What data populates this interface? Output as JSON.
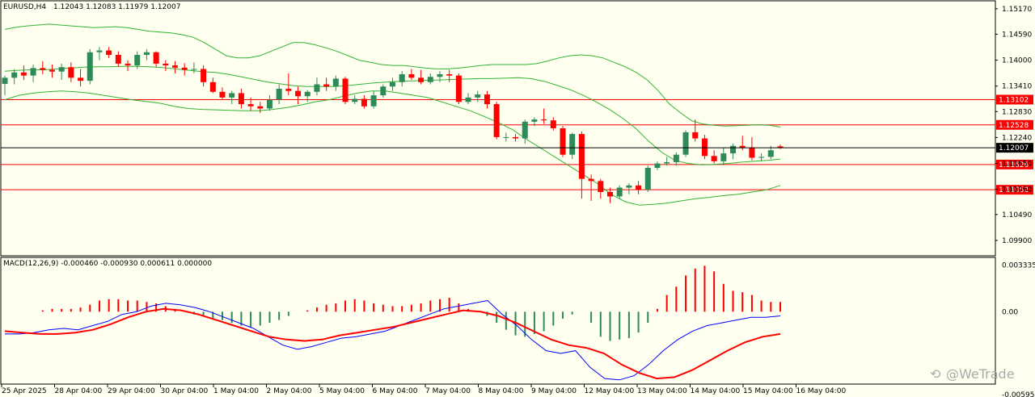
{
  "header": {
    "symbol": "EURUSD,H4",
    "ohlc": "1.12043 1.12083 1.11979 1.12007"
  },
  "macd_header": "MACD(12,26,9) -0.000460 -0.000930 0.000611 0.000000",
  "watermark": "@WeTrade",
  "colors": {
    "background": "#fffff0",
    "bull": "#2e8b57",
    "bear": "#ff0000",
    "bands": "#32b432",
    "hline": "#ff0000",
    "macd_line": "#0000ff",
    "signal_line": "#ff0000",
    "label_red": "#ff0000"
  },
  "chart_data": [
    {
      "type": "candlestick",
      "title": "EURUSD,H4",
      "ylim": [
        1.0955,
        1.1535
      ],
      "y_ticks": [
        "1.15170",
        "1.14590",
        "1.14000",
        "1.13410",
        "1.12830",
        "1.12240",
        "1.11650",
        "1.11060",
        "1.10490",
        "1.09900"
      ],
      "x_ticks": [
        "25 Apr 2025",
        "28 Apr 04:00",
        "29 Apr 04:00",
        "30 Apr 04:00",
        "1 May 04:00",
        "2 May 04:00",
        "5 May 04:00",
        "6 May 04:00",
        "7 May 04:00",
        "8 May 04:00",
        "9 May 04:00",
        "12 May 04:00",
        "13 May 04:00",
        "14 May 04:00",
        "15 May 04:00",
        "16 May 04:00"
      ],
      "current_price": "1.12007",
      "horizontal_lines": [
        "1.13102",
        "1.12528",
        "1.11626",
        "1.11052"
      ],
      "candles": [
        [
          1.1346,
          1.1365,
          1.132,
          1.136
        ],
        [
          1.136,
          1.138,
          1.1345,
          1.1372
        ],
        [
          1.1372,
          1.1388,
          1.1355,
          1.1365
        ],
        [
          1.1365,
          1.139,
          1.135,
          1.1382
        ],
        [
          1.1382,
          1.1398,
          1.1368,
          1.1378
        ],
        [
          1.1378,
          1.139,
          1.136,
          1.1374
        ],
        [
          1.1374,
          1.1392,
          1.1355,
          1.1384
        ],
        [
          1.1384,
          1.1395,
          1.135,
          1.136
        ],
        [
          1.136,
          1.138,
          1.134,
          1.1353
        ],
        [
          1.1353,
          1.1425,
          1.1345,
          1.1418
        ],
        [
          1.1418,
          1.143,
          1.14,
          1.1422
        ],
        [
          1.1422,
          1.143,
          1.1405,
          1.1412
        ],
        [
          1.1412,
          1.142,
          1.1385,
          1.1392
        ],
        [
          1.1392,
          1.14,
          1.1375,
          1.1388
        ],
        [
          1.1388,
          1.142,
          1.138,
          1.1412
        ],
        [
          1.1412,
          1.1425,
          1.14,
          1.1418
        ],
        [
          1.1418,
          1.142,
          1.1385,
          1.1392
        ],
        [
          1.1392,
          1.14,
          1.1375,
          1.1388
        ],
        [
          1.1388,
          1.1398,
          1.137,
          1.1383
        ],
        [
          1.1383,
          1.1393,
          1.1365,
          1.1378
        ],
        [
          1.1378,
          1.1395,
          1.137,
          1.138
        ],
        [
          1.138,
          1.1388,
          1.134,
          1.135
        ],
        [
          1.135,
          1.136,
          1.1325,
          1.1328
        ],
        [
          1.1328,
          1.1338,
          1.131,
          1.1315
        ],
        [
          1.1315,
          1.133,
          1.13,
          1.1325
        ],
        [
          1.1325,
          1.1335,
          1.129,
          1.13
        ],
        [
          1.13,
          1.1315,
          1.1285,
          1.1295
        ],
        [
          1.1295,
          1.1305,
          1.128,
          1.129
        ],
        [
          1.129,
          1.132,
          1.1285,
          1.131
        ],
        [
          1.131,
          1.1345,
          1.13,
          1.1335
        ],
        [
          1.1335,
          1.137,
          1.132,
          1.133
        ],
        [
          1.133,
          1.134,
          1.13,
          1.1318
        ],
        [
          1.1318,
          1.1332,
          1.1305,
          1.1328
        ],
        [
          1.1328,
          1.136,
          1.132,
          1.1345
        ],
        [
          1.1345,
          1.136,
          1.133,
          1.134
        ],
        [
          1.134,
          1.1365,
          1.133,
          1.1358
        ],
        [
          1.1358,
          1.1362,
          1.13,
          1.1305
        ],
        [
          1.1305,
          1.132,
          1.13,
          1.1312
        ],
        [
          1.1312,
          1.132,
          1.129,
          1.1295
        ],
        [
          1.1295,
          1.133,
          1.129,
          1.132
        ],
        [
          1.132,
          1.1345,
          1.1315,
          1.134
        ],
        [
          1.134,
          1.136,
          1.133,
          1.135
        ],
        [
          1.135,
          1.1375,
          1.134,
          1.1368
        ],
        [
          1.1368,
          1.138,
          1.1355,
          1.136
        ],
        [
          1.136,
          1.1378,
          1.1345,
          1.135
        ],
        [
          1.135,
          1.137,
          1.1345,
          1.1362
        ],
        [
          1.1362,
          1.1375,
          1.135,
          1.1368
        ],
        [
          1.1368,
          1.1378,
          1.135,
          1.1365
        ],
        [
          1.1365,
          1.137,
          1.13,
          1.1305
        ],
        [
          1.1305,
          1.1325,
          1.13,
          1.1315
        ],
        [
          1.1315,
          1.133,
          1.1305,
          1.1322
        ],
        [
          1.1322,
          1.133,
          1.129,
          1.13
        ],
        [
          1.13,
          1.1305,
          1.122,
          1.1225
        ],
        [
          1.1225,
          1.1235,
          1.1215,
          1.1225
        ],
        [
          1.1225,
          1.1232,
          1.1215,
          1.1222
        ],
        [
          1.1222,
          1.1265,
          1.121,
          1.126
        ],
        [
          1.126,
          1.127,
          1.125,
          1.1265
        ],
        [
          1.1265,
          1.129,
          1.1255,
          1.1263
        ],
        [
          1.1263,
          1.127,
          1.124,
          1.1245
        ],
        [
          1.1245,
          1.125,
          1.118,
          1.1185
        ],
        [
          1.1185,
          1.1235,
          1.1175,
          1.1232
        ],
        [
          1.1232,
          1.1238,
          1.1085,
          1.113
        ],
        [
          1.113,
          1.114,
          1.108,
          1.1125
        ],
        [
          1.1125,
          1.113,
          1.1085,
          1.11
        ],
        [
          1.11,
          1.111,
          1.1075,
          1.109
        ],
        [
          1.109,
          1.1115,
          1.1085,
          1.111
        ],
        [
          1.111,
          1.112,
          1.1095,
          1.1115
        ],
        [
          1.1115,
          1.1125,
          1.1095,
          1.1105
        ],
        [
          1.1105,
          1.116,
          1.11,
          1.1155
        ],
        [
          1.1155,
          1.117,
          1.115,
          1.1165
        ],
        [
          1.1165,
          1.118,
          1.116,
          1.1168
        ],
        [
          1.1168,
          1.119,
          1.116,
          1.1185
        ],
        [
          1.1185,
          1.124,
          1.118,
          1.1236
        ],
        [
          1.1236,
          1.1265,
          1.1215,
          1.1222
        ],
        [
          1.1222,
          1.123,
          1.1175,
          1.1182
        ],
        [
          1.1182,
          1.1195,
          1.1165,
          1.117
        ],
        [
          1.117,
          1.12,
          1.1165,
          1.1188
        ],
        [
          1.1188,
          1.121,
          1.1175,
          1.1205
        ],
        [
          1.1205,
          1.1228,
          1.1195,
          1.12
        ],
        [
          1.12,
          1.1225,
          1.1172,
          1.1178
        ],
        [
          1.1178,
          1.1188,
          1.117,
          1.118
        ],
        [
          1.118,
          1.1205,
          1.1175,
          1.1195
        ],
        [
          1.1204,
          1.1208,
          1.1198,
          1.1201
        ]
      ],
      "bollinger_upper": [
        1.147,
        1.1475,
        1.1478,
        1.148,
        1.1482,
        1.148,
        1.1478,
        1.1476,
        1.1474,
        1.1475,
        1.1476,
        1.1474,
        1.147,
        1.1466,
        1.1464,
        1.1462,
        1.1458,
        1.1452,
        1.144,
        1.1425,
        1.141,
        1.1405,
        1.1405,
        1.141,
        1.142,
        1.143,
        1.144,
        1.144,
        1.1435,
        1.1428,
        1.142,
        1.141,
        1.14,
        1.1395,
        1.139,
        1.1388,
        1.1388,
        1.1385,
        1.1382,
        1.138,
        1.138,
        1.1382,
        1.1385,
        1.1388,
        1.139,
        1.139,
        1.139,
        1.139,
        1.1392,
        1.1398,
        1.1405,
        1.141,
        1.1412,
        1.141,
        1.1405,
        1.1395,
        1.1385,
        1.1372,
        1.1355,
        1.133,
        1.13,
        1.128,
        1.1262,
        1.1255,
        1.1252,
        1.125,
        1.1251,
        1.1252,
        1.1253,
        1.1252,
        1.1248
      ],
      "bollinger_middle": [
        1.1375,
        1.1377,
        1.1378,
        1.1378,
        1.138,
        1.1382,
        1.1384,
        1.1385,
        1.1385,
        1.1386,
        1.1386,
        1.1385,
        1.1383,
        1.138,
        1.1377,
        1.1374,
        1.1372,
        1.1368,
        1.1362,
        1.1356,
        1.135,
        1.1346,
        1.1342,
        1.134,
        1.134,
        1.134,
        1.1342,
        1.1345,
        1.1348,
        1.135,
        1.1352,
        1.1353,
        1.1354,
        1.1355,
        1.1356,
        1.1357,
        1.1358,
        1.1358,
        1.1359,
        1.136,
        1.1358,
        1.1352,
        1.1343,
        1.1333,
        1.132,
        1.1305,
        1.1288,
        1.1268,
        1.1245,
        1.1215,
        1.119,
        1.1172,
        1.1165,
        1.1162,
        1.1163,
        1.1165,
        1.1168,
        1.117,
        1.1172,
        1.1175
      ],
      "bollinger_lower": [
        1.131,
        1.132,
        1.1325,
        1.1328,
        1.133,
        1.1328,
        1.1325,
        1.132,
        1.1315,
        1.131,
        1.1306,
        1.1302,
        1.1295,
        1.129,
        1.1288,
        1.1287,
        1.1286,
        1.1285,
        1.1285,
        1.1288,
        1.1292,
        1.1298,
        1.1305,
        1.131,
        1.1318,
        1.1325,
        1.133,
        1.133,
        1.1325,
        1.132,
        1.1315,
        1.1305,
        1.1295,
        1.1285,
        1.1272,
        1.1258,
        1.1242,
        1.122,
        1.12,
        1.118,
        1.116,
        1.114,
        1.112,
        1.1095,
        1.1078,
        1.107,
        1.1072,
        1.1075,
        1.108,
        1.1085,
        1.1088,
        1.1092,
        1.1095,
        1.11,
        1.1105,
        1.1115
      ]
    },
    {
      "type": "macd",
      "title": "MACD(12,26,9)",
      "ylim": [
        -0.0052,
        0.0039
      ],
      "y_ticks": [
        "0.003335",
        "0.00",
        "-0.00595"
      ],
      "histogram": [
        0.0,
        0.0,
        0.0,
        0.0,
        0.0001,
        0.0002,
        0.0002,
        0.0002,
        0.0003,
        0.0005,
        0.0008,
        0.0009,
        0.0009,
        0.0008,
        0.0008,
        0.0007,
        0.0006,
        0.0004,
        0.0002,
        0.0,
        -0.0002,
        -0.0003,
        -0.0005,
        -0.0006,
        -0.0008,
        -0.001,
        -0.0011,
        -0.001,
        -0.0008,
        -0.0006,
        -0.0003,
        0.0,
        0.0001,
        0.0003,
        0.0005,
        0.0006,
        0.0008,
        0.0009,
        0.0008,
        0.0006,
        0.0005,
        0.0004,
        0.0004,
        0.0005,
        0.0006,
        0.0008,
        0.0009,
        0.001,
        0.0006,
        0.0002,
        0.0,
        -0.0003,
        -0.0008,
        -0.0013,
        -0.0017,
        -0.0018,
        -0.0016,
        -0.0014,
        -0.001,
        -0.0005,
        -0.0002,
        0.0,
        -0.0008,
        -0.0018,
        -0.0021,
        -0.002,
        -0.0019,
        -0.0015,
        -0.0008,
        0.0002,
        0.0012,
        0.0018,
        0.0026,
        0.0031,
        0.0033,
        0.0029,
        0.002,
        0.0015,
        0.0014,
        0.0012,
        0.0008,
        0.0007,
        0.0007
      ],
      "macd": [
        -0.0016,
        -0.0016,
        -0.0015,
        -0.0013,
        -0.0012,
        -0.0013,
        -0.001,
        -0.0007,
        -0.0002,
        0.0,
        0.0004,
        0.0006,
        0.0005,
        0.0003,
        0.0,
        -0.0004,
        -0.0008,
        -0.0012,
        -0.0018,
        -0.0024,
        -0.0027,
        -0.0025,
        -0.0022,
        -0.0019,
        -0.0018,
        -0.0016,
        -0.0014,
        -0.001,
        -0.0006,
        -0.0002,
        0.0002,
        0.0004,
        0.0006,
        0.0008,
        -0.0002,
        -0.001,
        -0.002,
        -0.0028,
        -0.003,
        -0.0028,
        -0.004,
        -0.0048,
        -0.0049,
        -0.0046,
        -0.0038,
        -0.0028,
        -0.002,
        -0.0014,
        -0.001,
        -0.0008,
        -0.0006,
        -0.0004,
        -0.0004,
        -0.0003
      ],
      "signal": [
        -0.0014,
        -0.0015,
        -0.0016,
        -0.0016,
        -0.0015,
        -0.0013,
        -0.0009,
        -0.0004,
        0.0,
        0.0002,
        0.0001,
        -0.0002,
        -0.0006,
        -0.001,
        -0.0014,
        -0.0018,
        -0.002,
        -0.0021,
        -0.002,
        -0.0017,
        -0.0015,
        -0.0013,
        -0.0011,
        -0.0008,
        -0.0005,
        -0.0002,
        0.0001,
        0.0,
        -0.0003,
        -0.0008,
        -0.0014,
        -0.002,
        -0.0024,
        -0.0026,
        -0.003,
        -0.0038,
        -0.0044,
        -0.0048,
        -0.0047,
        -0.0042,
        -0.0035,
        -0.0028,
        -0.0022,
        -0.0018,
        -0.0016
      ]
    }
  ]
}
